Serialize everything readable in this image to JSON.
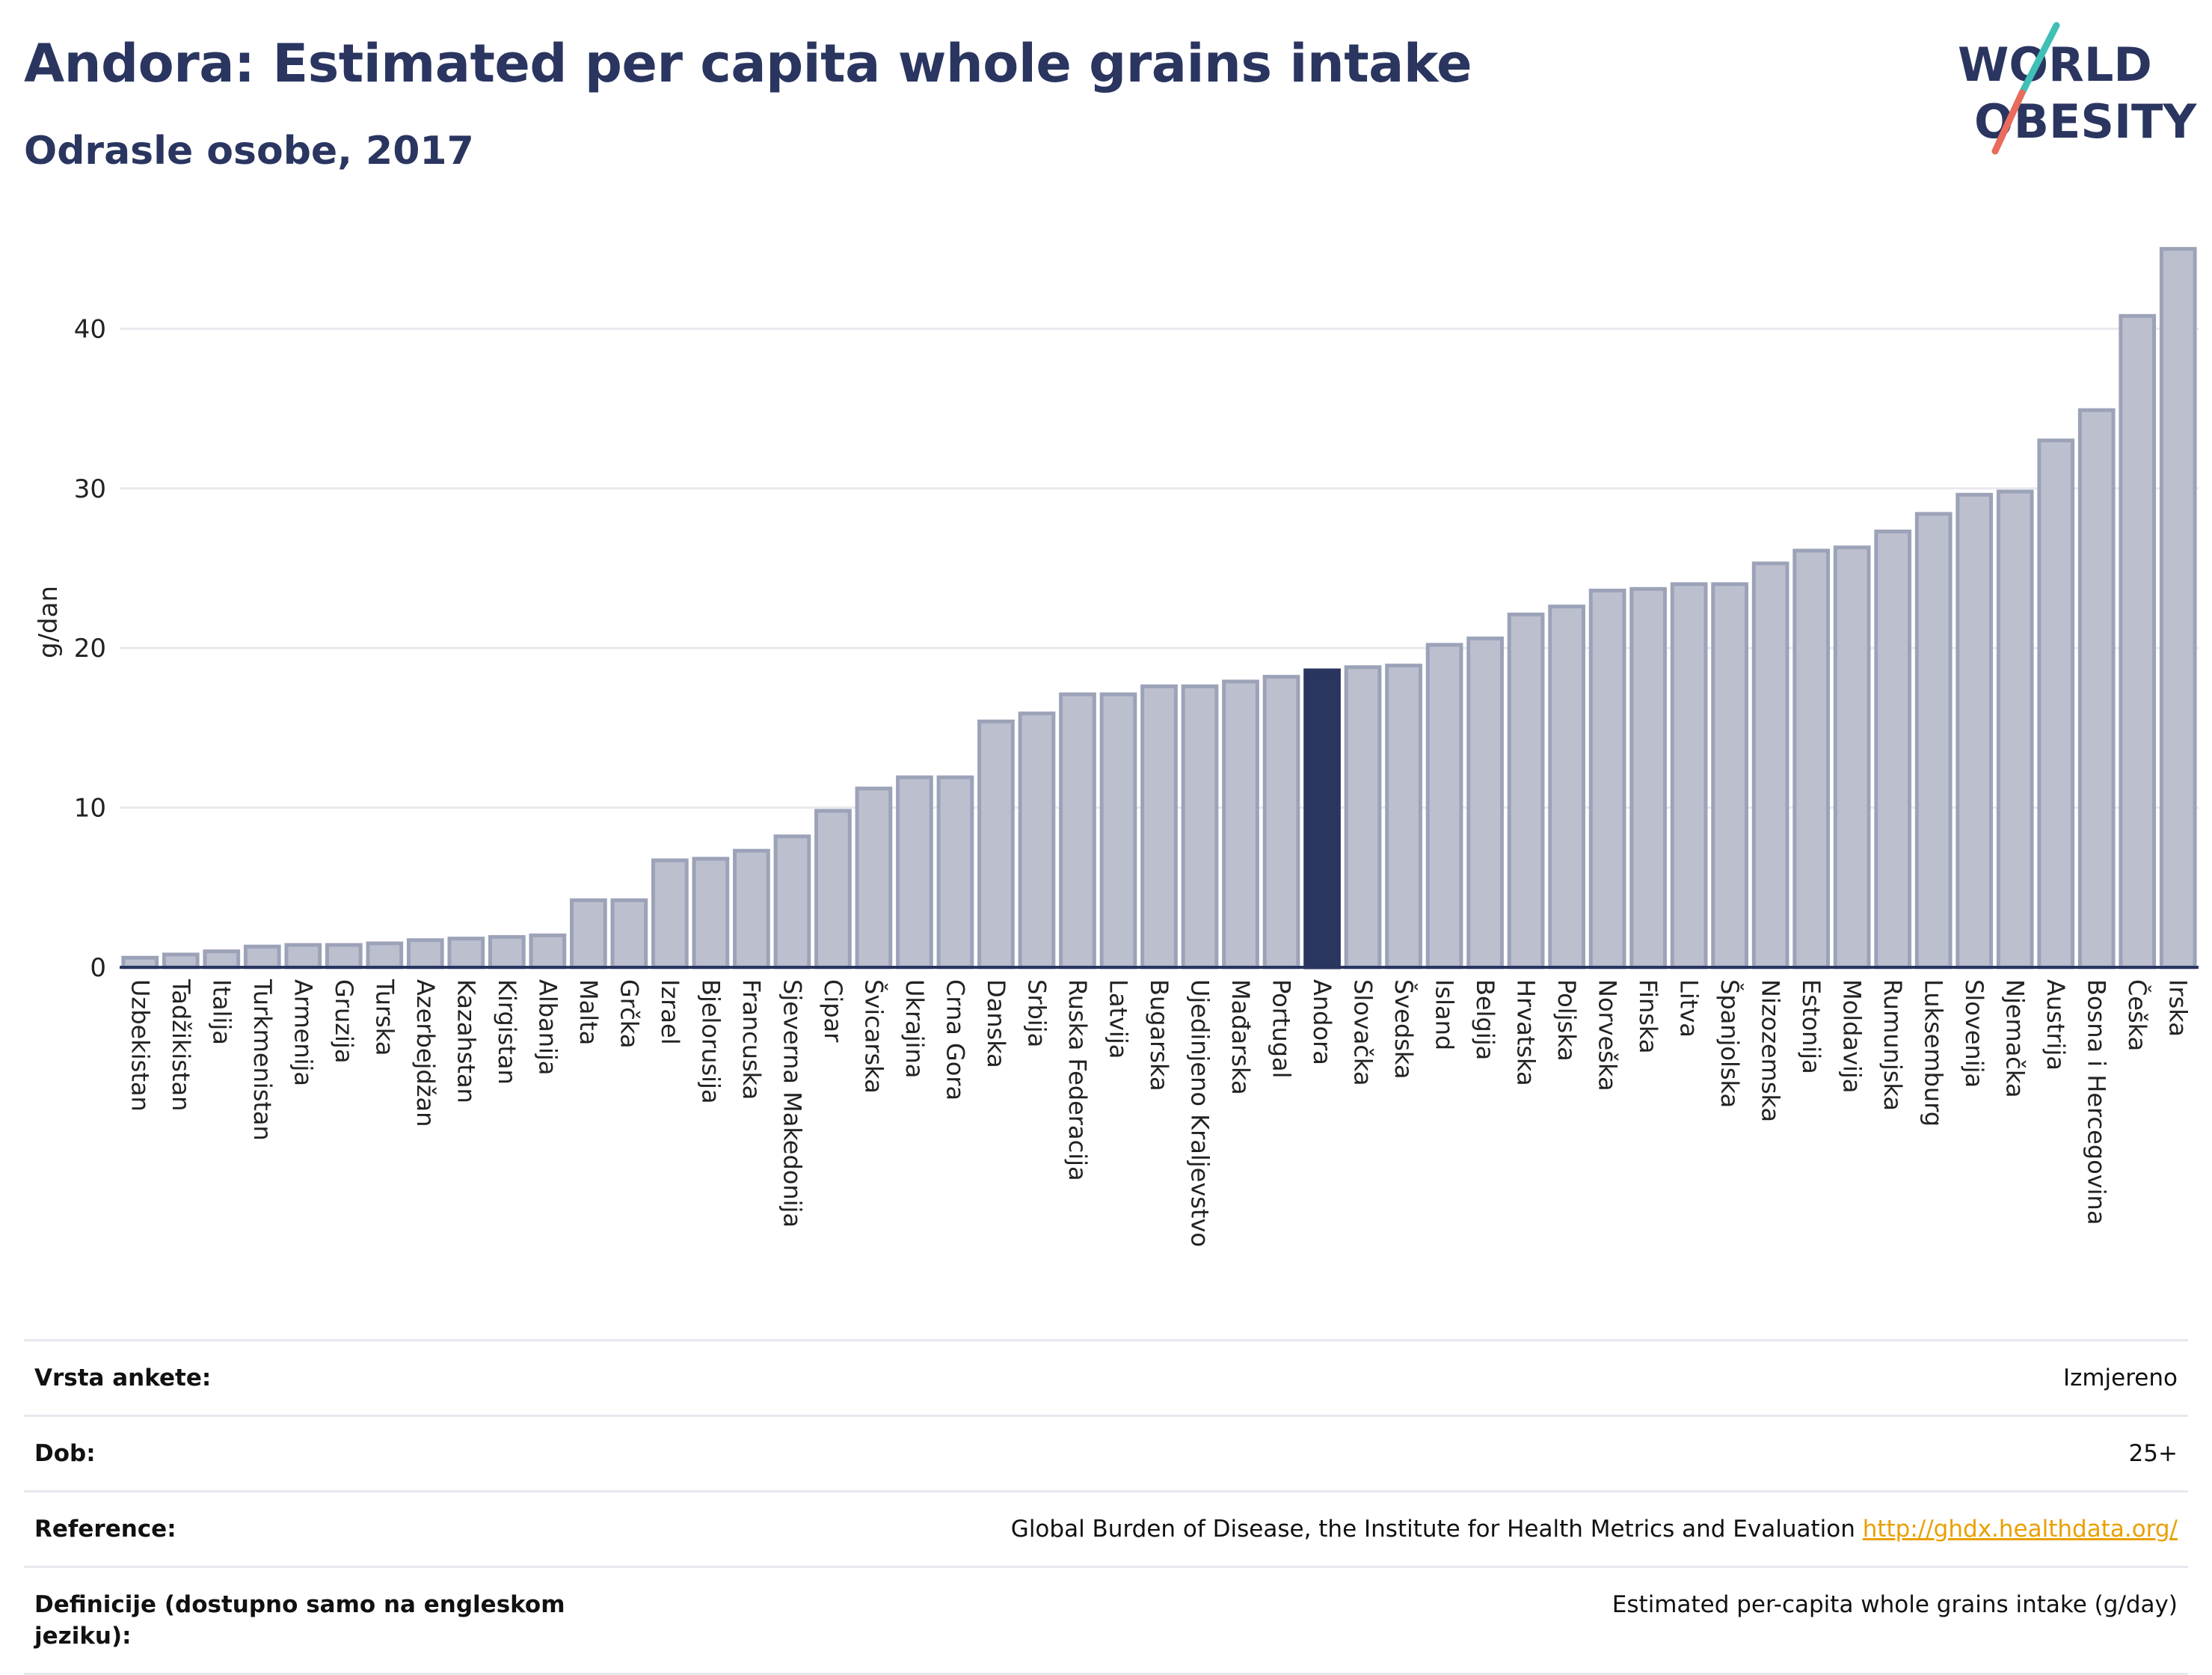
{
  "header": {
    "title": "Andora: Estimated per capita whole grains intake",
    "subtitle": "Odrasle osobe, 2017"
  },
  "logo": {
    "line1": "WORLD",
    "line2": "OBESITY"
  },
  "chart_data": {
    "type": "bar",
    "ylabel": "g/dan",
    "xlabel": "",
    "ylim": [
      0,
      47
    ],
    "yticks": [
      0,
      10,
      20,
      30,
      40
    ],
    "grid": true,
    "highlight": "Andora",
    "colors": {
      "bar": "#bcc0ce",
      "bar_edge": "#9ca2b8",
      "highlight": "#2a3560",
      "grid": "#e8e8ee"
    },
    "categories": [
      "Uzbekistan",
      "Tadžikistan",
      "Italija",
      "Turkmenistan",
      "Armenija",
      "Gruzija",
      "Turska",
      "Azerbejdžan",
      "Kazahstan",
      "Kirgistan",
      "Albanija",
      "Malta",
      "Grčka",
      "Izrael",
      "Bjelorusija",
      "Francuska",
      "Sjeverna Makedonija",
      "Cipar",
      "Švicarska",
      "Ukrajina",
      "Crna Gora",
      "Danska",
      "Srbija",
      "Ruska Federacija",
      "Latvija",
      "Bugarska",
      "Ujedinjeno Kraljevstvo",
      "Mađarska",
      "Portugal",
      "Andora",
      "Slovačka",
      "Švedska",
      "Island",
      "Belgija",
      "Hrvatska",
      "Poljska",
      "Norveška",
      "Finska",
      "Litva",
      "Španjolska",
      "Nizozemska",
      "Estonija",
      "Moldavija",
      "Rumunjska",
      "Luksemburg",
      "Slovenija",
      "Njemačka",
      "Austrija",
      "Bosna i Hercegovina",
      "Češka",
      "Irska"
    ],
    "values": [
      0.6,
      0.8,
      1.0,
      1.3,
      1.4,
      1.4,
      1.5,
      1.7,
      1.8,
      1.9,
      2.0,
      4.2,
      4.2,
      6.7,
      6.8,
      7.3,
      8.2,
      9.8,
      11.2,
      11.9,
      11.9,
      15.4,
      15.9,
      17.1,
      17.1,
      17.6,
      17.6,
      17.9,
      18.2,
      18.6,
      18.8,
      18.9,
      20.2,
      20.6,
      22.1,
      22.6,
      23.6,
      23.7,
      24.0,
      24.0,
      25.3,
      26.1,
      26.3,
      27.3,
      28.4,
      29.6,
      29.8,
      33.0,
      34.9,
      40.8,
      45.0
    ]
  },
  "info": {
    "survey_label": "Vrsta ankete:",
    "survey_value": "Izmjereno",
    "age_label": "Dob:",
    "age_value": "25+",
    "ref_label": "Reference:",
    "ref_value": "Global Burden of Disease, the Institute for Health Metrics and Evaluation",
    "ref_link": "http://ghdx.healthdata.org/",
    "def_label": "Definicije (dostupno samo na engleskom jeziku):",
    "def_value": "Estimated per-capita whole grains intake (g/day)"
  }
}
